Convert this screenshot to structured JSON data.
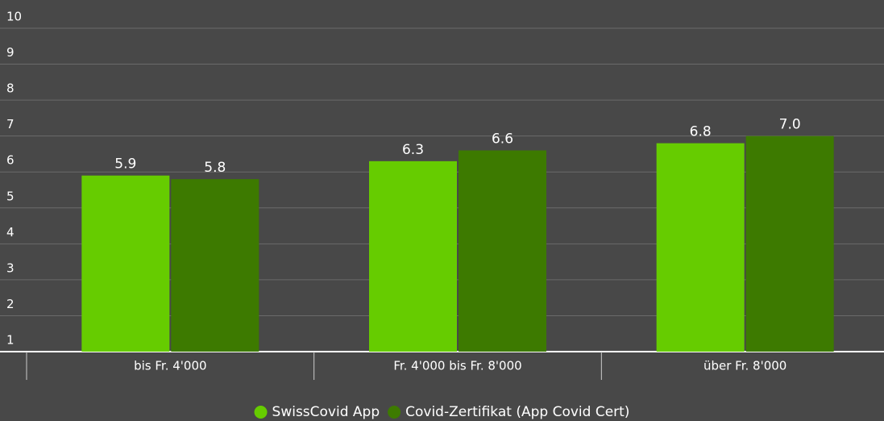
{
  "chart_data": {
    "type": "bar",
    "categories": [
      "bis Fr. 4'000",
      "Fr. 4'000 bis Fr. 8'000",
      "über Fr. 8'000"
    ],
    "series": [
      {
        "name": "SwissCovid App",
        "color": "#66cc00",
        "values": [
          5.9,
          6.3,
          6.8
        ],
        "value_labels": [
          "5.9",
          "6.3",
          "6.8"
        ]
      },
      {
        "name": "Covid-Zertifikat (App Covid Cert)",
        "color": "#3d7a00",
        "values": [
          5.8,
          6.6,
          7.0
        ],
        "value_labels": [
          "5.8",
          "6.6",
          "7.0"
        ]
      }
    ],
    "ylim": [
      1,
      10
    ],
    "yticks": [
      1,
      2,
      3,
      4,
      5,
      6,
      7,
      8,
      9,
      10
    ],
    "grid": true,
    "legend": "bottom"
  }
}
